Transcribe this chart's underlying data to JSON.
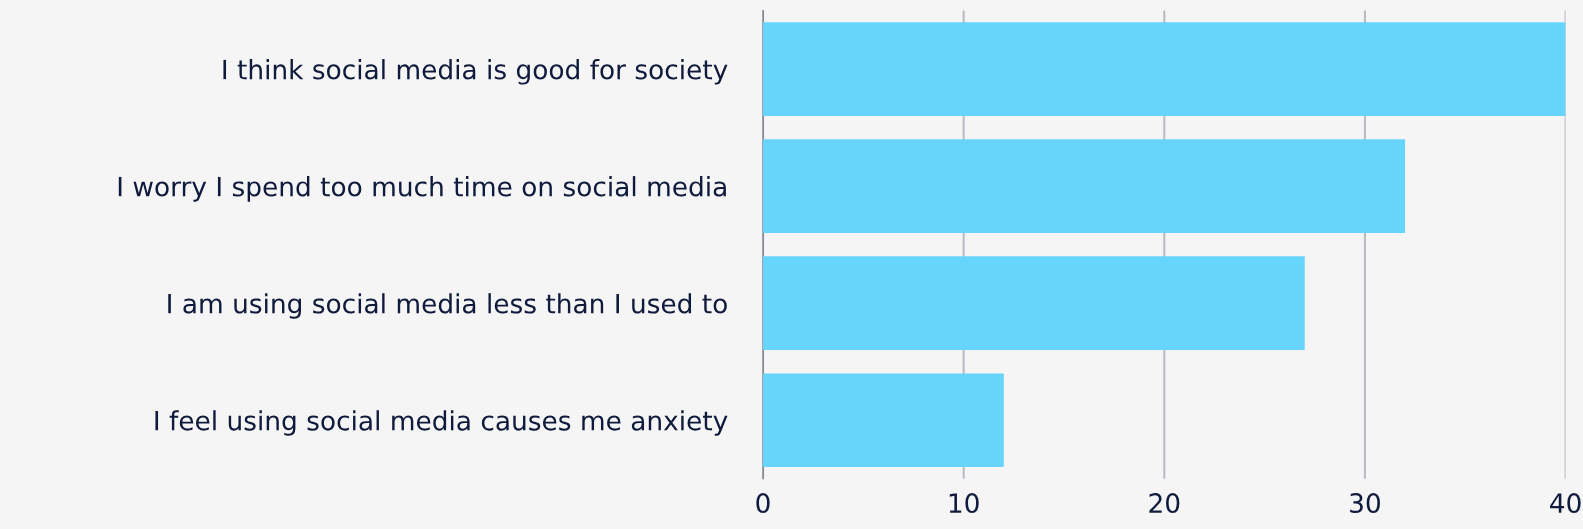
{
  "chart_data": {
    "type": "bar",
    "orientation": "horizontal",
    "categories": [
      "I think social media is good for society",
      "I worry I spend too much time on social media",
      "I am using social media less than I used to",
      "I feel using social media causes me anxiety"
    ],
    "values": [
      40,
      32,
      27,
      12
    ],
    "color": "#67d4fc",
    "xlim": [
      0,
      40
    ],
    "xticks": [
      0,
      10,
      20,
      30,
      40
    ],
    "grid": "x",
    "legend": false
  }
}
